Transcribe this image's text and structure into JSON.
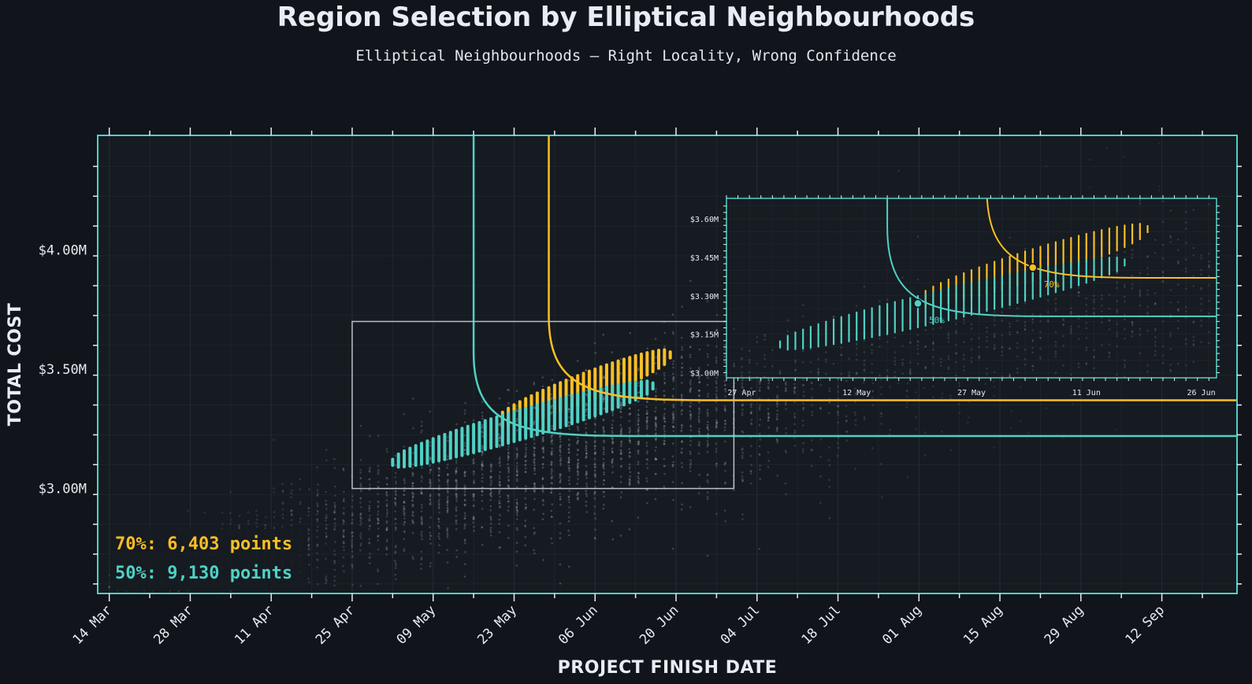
{
  "title": "Region Selection by Elliptical Neighbourhoods",
  "subtitle": "Elliptical Neighbourhoods — Right Locality, Wrong Confidence",
  "colors": {
    "background": "#11151b",
    "plot_background": "#161b21",
    "frame": "#4fd1c5",
    "teal": "#4fd1c5",
    "amber": "#fbbf24",
    "points": "#8a98aa",
    "zoom_box": "#b8c0cb"
  },
  "chart_data": {
    "type": "scatter",
    "xlabel": "PROJECT FINISH DATE",
    "ylabel": "TOTAL COST",
    "x_ticks": [
      "14 Mar",
      "28 Mar",
      "11 Apr",
      "25 Apr",
      "09 May",
      "23 May",
      "06 Jun",
      "20 Jun",
      "04 Jul",
      "18 Jul",
      "01 Aug",
      "15 Aug",
      "29 Aug",
      "12 Sep"
    ],
    "y_ticks": [
      "$3.00M",
      "$3.50M",
      "$4.00M"
    ],
    "y_tick_values": [
      3.0,
      3.5,
      4.0
    ],
    "xlim_days_from_14_Mar": [
      -2,
      195
    ],
    "ylim_millions": [
      2.56,
      4.48
    ],
    "grid": true,
    "series": [
      {
        "name": "50%",
        "color": "#4fd1c5",
        "count": 9130,
        "count_label": "50%: 9,130 points",
        "center_date": "20 May",
        "center_cost_millions": 3.27,
        "start_date": "02 May",
        "end_date": "16 Jun",
        "start_cost_millions": 3.11,
        "end_cost_millions": 3.43
      },
      {
        "name": "70%",
        "color": "#fbbf24",
        "count": 6403,
        "count_label": "70%: 6,403 points",
        "center_date": "04 Jun",
        "center_cost_millions": 3.41,
        "start_date": "20 May",
        "end_date": "19 Jun",
        "start_cost_millions": 3.28,
        "end_cost_millions": 3.56
      }
    ],
    "selection_boundaries": [
      {
        "name": "50%",
        "color": "#4fd1c5",
        "vertical_date": "16 May",
        "asymptote_cost_millions": 3.22
      },
      {
        "name": "70%",
        "color": "#fbbf24",
        "vertical_date": "29 May",
        "asymptote_cost_millions": 3.37
      }
    ],
    "zoom_region": {
      "x": [
        "25 Apr",
        "30 Jun"
      ],
      "y_millions": [
        3.0,
        3.7
      ]
    },
    "inset": {
      "x_ticks": [
        "27 Apr",
        "12 May",
        "27 May",
        "11 Jun",
        "26 Jun"
      ],
      "y_ticks": [
        "$3.00M",
        "$3.15M",
        "$3.30M",
        "$3.45M",
        "$3.60M"
      ],
      "region_labels": [
        "50%",
        "70%"
      ]
    }
  }
}
